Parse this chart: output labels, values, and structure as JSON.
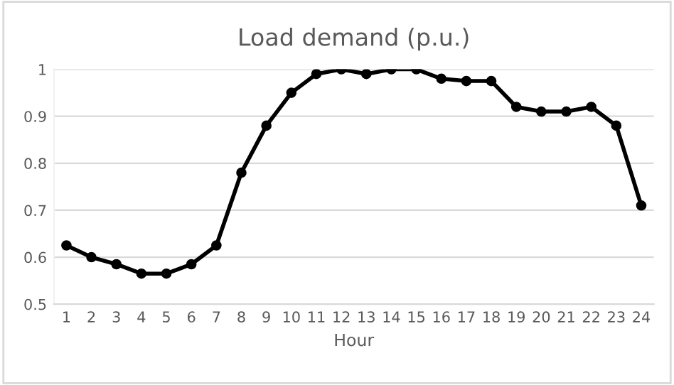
{
  "chart_data": {
    "type": "line",
    "title": "Load demand (p.u.)",
    "xlabel": "Hour",
    "categories": [
      "1",
      "2",
      "3",
      "4",
      "5",
      "6",
      "7",
      "8",
      "9",
      "10",
      "11",
      "12",
      "13",
      "14",
      "15",
      "16",
      "17",
      "18",
      "19",
      "20",
      "21",
      "22",
      "23",
      "24"
    ],
    "series": [
      {
        "color": "#000000",
        "values": [
          0.625,
          0.6,
          0.585,
          0.565,
          0.565,
          0.585,
          0.625,
          0.78,
          0.88,
          0.95,
          0.99,
          1,
          0.99,
          1,
          1,
          0.98,
          0.975,
          0.975,
          0.92,
          0.91,
          0.91,
          0.92,
          0.88,
          0.71
        ]
      }
    ],
    "ylim": [
      0.5,
      1.0
    ],
    "yticks": [
      0.5,
      0.6,
      0.7,
      0.8,
      0.9,
      {
        "value": 1,
        "label": "1"
      }
    ],
    "grid": "y",
    "marker": "circle",
    "line_style": "solid"
  }
}
